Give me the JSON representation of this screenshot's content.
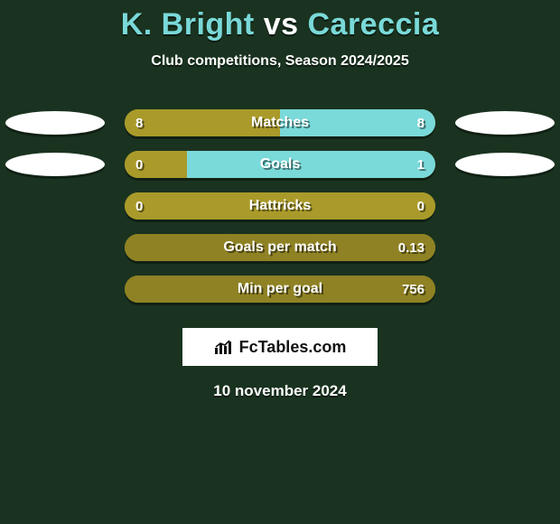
{
  "colors": {
    "background": "#1a3320",
    "olive": "#a99a2a",
    "olive_dark": "#8f8224",
    "cyan": "#7ad9d9",
    "white": "#ffffff"
  },
  "title": {
    "player_a": "K. Bright",
    "vs": " vs ",
    "player_b": "Careccia",
    "fontsize": 34,
    "highlight_color": "#7ad9d9"
  },
  "subtitle": {
    "text": "Club competitions, Season 2024/2025",
    "fontsize": 16
  },
  "bar_style": {
    "track_width": 344,
    "track_height": 30,
    "border_radius": 16,
    "label_fontsize": 16,
    "value_fontsize": 15,
    "text_color": "#ffffff"
  },
  "logo_style": {
    "width": 110,
    "height": 26,
    "color": "#ffffff"
  },
  "rows": [
    {
      "label": "Matches",
      "left_value": "8",
      "right_value": "8",
      "left_pct": 50,
      "right_pct": 50,
      "left_color": "#a99a2a",
      "right_color": "#7ad9d9",
      "show_logos": true
    },
    {
      "label": "Goals",
      "left_value": "0",
      "right_value": "1",
      "left_pct": 20,
      "right_pct": 80,
      "left_color": "#a99a2a",
      "right_color": "#7ad9d9",
      "show_logos": true
    },
    {
      "label": "Hattricks",
      "left_value": "0",
      "right_value": "0",
      "left_pct": 100,
      "right_pct": 0,
      "left_color": "#a99a2a",
      "right_color": "#7ad9d9",
      "show_logos": false
    },
    {
      "label": "Goals per match",
      "left_value": "",
      "right_value": "0.13",
      "left_pct": 0,
      "right_pct": 100,
      "left_color": "#a99a2a",
      "right_color": "#8f8224",
      "show_logos": false
    },
    {
      "label": "Min per goal",
      "left_value": "",
      "right_value": "756",
      "left_pct": 0,
      "right_pct": 100,
      "left_color": "#a99a2a",
      "right_color": "#8f8224",
      "show_logos": false
    }
  ],
  "branding": {
    "text": "FcTables.com",
    "background": "#ffffff",
    "text_color": "#111111",
    "fontsize": 18
  },
  "date": {
    "text": "10 november 2024",
    "fontsize": 17
  }
}
